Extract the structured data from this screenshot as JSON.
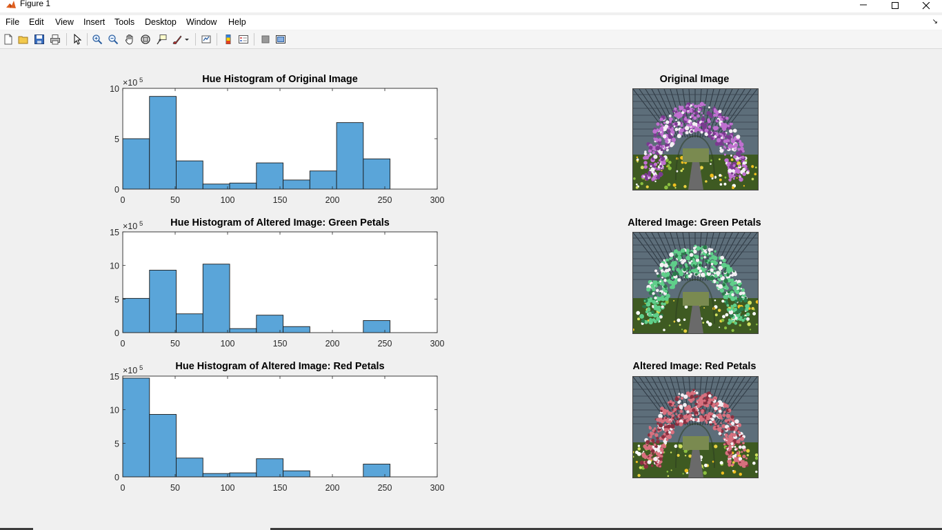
{
  "window": {
    "title": "Figure 1",
    "controls": {
      "minimize": "–",
      "maximize": "☐",
      "close": "✕"
    }
  },
  "menu": [
    "File",
    "Edit",
    "View",
    "Insert",
    "Tools",
    "Desktop",
    "Window",
    "Help"
  ],
  "toolbar_icons": [
    "new-figure-icon",
    "open-file-icon",
    "save-icon",
    "print-icon",
    "edit-plot-icon",
    "zoom-in-icon",
    "zoom-out-icon",
    "pan-icon",
    "rotate-3d-icon",
    "data-cursor-icon",
    "brush-icon",
    "link-plot-icon",
    "insert-colorbar-icon",
    "insert-legend-icon",
    "hide-plot-tools-icon",
    "show-plot-tools-icon"
  ],
  "colors": {
    "bar_fill": "#5aa5d9",
    "bar_edge": "#1a1a1a",
    "figure_bg": "#f0f0f0"
  },
  "chart_data": [
    {
      "type": "bar",
      "title": "Hue Histogram of Original Image",
      "exponent_label": "×10",
      "exponent_power": "5",
      "bin_edges": [
        0,
        25.5,
        51,
        76.5,
        102,
        127.5,
        153,
        178.5,
        204,
        229.5,
        255
      ],
      "values": [
        5.0,
        9.2,
        2.8,
        0.5,
        0.6,
        2.6,
        0.9,
        1.8,
        6.6,
        3.0
      ],
      "xlim": [
        0,
        300
      ],
      "ylim": [
        0,
        10
      ],
      "xticks": [
        0,
        50,
        100,
        150,
        200,
        250,
        300
      ],
      "yticks": [
        0,
        5,
        10
      ]
    },
    {
      "type": "bar",
      "title": "Hue Histogram of Altered Image: Green Petals",
      "exponent_label": "×10",
      "exponent_power": "5",
      "bin_edges": [
        0,
        25.5,
        51,
        76.5,
        102,
        127.5,
        153,
        178.5,
        204,
        229.5,
        255
      ],
      "values": [
        5.1,
        9.3,
        2.8,
        10.2,
        0.6,
        2.6,
        0.9,
        0.0,
        0.0,
        1.8
      ],
      "xlim": [
        0,
        300
      ],
      "ylim": [
        0,
        15
      ],
      "xticks": [
        0,
        50,
        100,
        150,
        200,
        250,
        300
      ],
      "yticks": [
        0,
        5,
        10,
        15
      ]
    },
    {
      "type": "bar",
      "title": "Hue Histogram of Altered Image: Red Petals",
      "exponent_label": "×10",
      "exponent_power": "5",
      "bin_edges": [
        0,
        25.5,
        51,
        76.5,
        102,
        127.5,
        153,
        178.5,
        204,
        229.5,
        255
      ],
      "values": [
        14.7,
        9.3,
        2.8,
        0.5,
        0.6,
        2.7,
        0.9,
        0.0,
        0.0,
        1.9
      ],
      "xlim": [
        0,
        300
      ],
      "ylim": [
        0,
        15
      ],
      "xticks": [
        0,
        50,
        100,
        150,
        200,
        250,
        300
      ],
      "yticks": [
        0,
        5,
        10,
        15
      ]
    }
  ],
  "images": [
    {
      "title": "Original Image",
      "petal_color": "#c070d0",
      "petal_dark": "#7a3a90"
    },
    {
      "title": "Altered Image: Green Petals",
      "petal_color": "#5fcf8a",
      "petal_dark": "#2a7a4a"
    },
    {
      "title": "Altered Image: Red Petals",
      "petal_color": "#d8707e",
      "petal_dark": "#8a3040"
    }
  ]
}
